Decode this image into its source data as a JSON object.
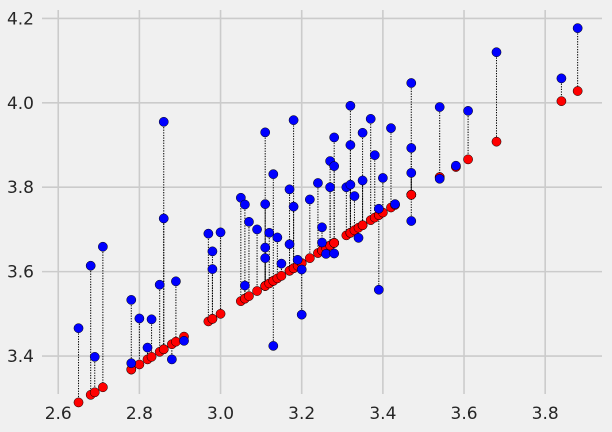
{
  "chart_data": {
    "type": "scatter",
    "title": "",
    "xlabel": "",
    "ylabel": "",
    "xlim": [
      2.56,
      3.94
    ],
    "ylim": [
      3.31,
      4.22
    ],
    "xticks": [
      "2.6",
      "2.8",
      "3.0",
      "3.2",
      "3.4",
      "3.6",
      "3.8"
    ],
    "yticks": [
      "3.4",
      "3.6",
      "3.8",
      "4.0",
      "4.2"
    ],
    "grid": true,
    "legend": "none",
    "colors": {
      "observed": "#0000ff",
      "fitted": "#ff0000",
      "residual": "#000000",
      "background": "#f0f0f0",
      "grid": "#cbcbcb"
    },
    "fit_line": {
      "intercept": 1.7,
      "slope": 0.6
    },
    "points": [
      {
        "x": 2.65,
        "y": 3.466
      },
      {
        "x": 2.68,
        "y": 3.614
      },
      {
        "x": 2.69,
        "y": 3.398
      },
      {
        "x": 2.71,
        "y": 3.659
      },
      {
        "x": 2.78,
        "y": 3.533
      },
      {
        "x": 2.78,
        "y": 3.383
      },
      {
        "x": 2.8,
        "y": 3.489
      },
      {
        "x": 2.82,
        "y": 3.42
      },
      {
        "x": 2.83,
        "y": 3.487
      },
      {
        "x": 2.85,
        "y": 3.569
      },
      {
        "x": 2.86,
        "y": 3.955
      },
      {
        "x": 2.86,
        "y": 3.726
      },
      {
        "x": 2.88,
        "y": 3.392
      },
      {
        "x": 2.89,
        "y": 3.577
      },
      {
        "x": 2.91,
        "y": 3.436
      },
      {
        "x": 2.97,
        "y": 3.69
      },
      {
        "x": 2.98,
        "y": 3.648
      },
      {
        "x": 2.98,
        "y": 3.606
      },
      {
        "x": 3.0,
        "y": 3.693
      },
      {
        "x": 3.05,
        "y": 3.775
      },
      {
        "x": 3.06,
        "y": 3.759
      },
      {
        "x": 3.06,
        "y": 3.567
      },
      {
        "x": 3.07,
        "y": 3.718
      },
      {
        "x": 3.09,
        "y": 3.7
      },
      {
        "x": 3.11,
        "y": 3.93
      },
      {
        "x": 3.11,
        "y": 3.76
      },
      {
        "x": 3.11,
        "y": 3.657
      },
      {
        "x": 3.11,
        "y": 3.632
      },
      {
        "x": 3.12,
        "y": 3.692
      },
      {
        "x": 3.13,
        "y": 3.831
      },
      {
        "x": 3.13,
        "y": 3.424
      },
      {
        "x": 3.14,
        "y": 3.681
      },
      {
        "x": 3.15,
        "y": 3.619
      },
      {
        "x": 3.17,
        "y": 3.795
      },
      {
        "x": 3.17,
        "y": 3.665
      },
      {
        "x": 3.18,
        "y": 3.959
      },
      {
        "x": 3.18,
        "y": 3.754
      },
      {
        "x": 3.19,
        "y": 3.628
      },
      {
        "x": 3.2,
        "y": 3.605
      },
      {
        "x": 3.2,
        "y": 3.498
      },
      {
        "x": 3.22,
        "y": 3.771
      },
      {
        "x": 3.24,
        "y": 3.81
      },
      {
        "x": 3.25,
        "y": 3.705
      },
      {
        "x": 3.25,
        "y": 3.669
      },
      {
        "x": 3.26,
        "y": 3.642
      },
      {
        "x": 3.27,
        "y": 3.862
      },
      {
        "x": 3.27,
        "y": 3.8
      },
      {
        "x": 3.28,
        "y": 3.918
      },
      {
        "x": 3.28,
        "y": 3.85
      },
      {
        "x": 3.28,
        "y": 3.643
      },
      {
        "x": 3.31,
        "y": 3.8
      },
      {
        "x": 3.32,
        "y": 3.9
      },
      {
        "x": 3.32,
        "y": 3.806
      },
      {
        "x": 3.32,
        "y": 3.993
      },
      {
        "x": 3.33,
        "y": 3.779
      },
      {
        "x": 3.34,
        "y": 3.68
      },
      {
        "x": 3.35,
        "y": 3.816
      },
      {
        "x": 3.35,
        "y": 3.929
      },
      {
        "x": 3.37,
        "y": 3.962
      },
      {
        "x": 3.38,
        "y": 3.876
      },
      {
        "x": 3.39,
        "y": 3.557
      },
      {
        "x": 3.39,
        "y": 3.749
      },
      {
        "x": 3.4,
        "y": 3.822
      },
      {
        "x": 3.42,
        "y": 3.94
      },
      {
        "x": 3.43,
        "y": 3.76
      },
      {
        "x": 3.47,
        "y": 4.047
      },
      {
        "x": 3.47,
        "y": 3.893
      },
      {
        "x": 3.47,
        "y": 3.834
      },
      {
        "x": 3.47,
        "y": 3.72
      },
      {
        "x": 3.54,
        "y": 3.99
      },
      {
        "x": 3.54,
        "y": 3.82
      },
      {
        "x": 3.58,
        "y": 3.851
      },
      {
        "x": 3.61,
        "y": 3.981
      },
      {
        "x": 3.68,
        "y": 4.12
      },
      {
        "x": 3.84,
        "y": 4.058
      },
      {
        "x": 3.88,
        "y": 4.177
      }
    ]
  }
}
